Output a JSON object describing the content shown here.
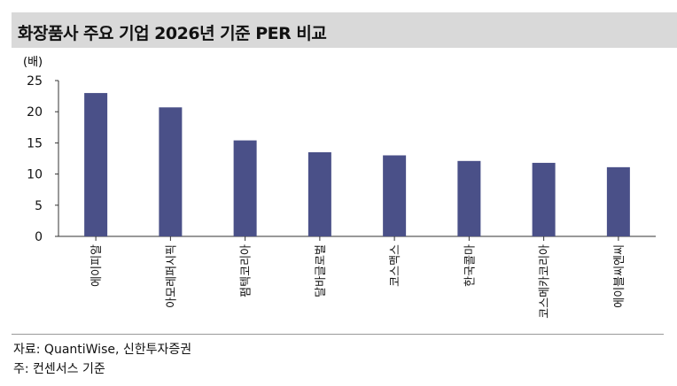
{
  "header": {
    "title": "화장품사 주요 기업 2026년 기준 PER 비교"
  },
  "footer": {
    "source": "자료: QuantiWise, 신한투자증권",
    "note": "주: 컨센서스 기준"
  },
  "chart_data": {
    "type": "bar",
    "title": "화장품사 주요 기업 2026년 기준 PER 비교",
    "ylabel": "(배)",
    "xlabel": "",
    "ylim": [
      0,
      25
    ],
    "yticks": [
      0,
      5,
      10,
      15,
      20,
      25
    ],
    "grid": false,
    "bar_color": "#4a5088",
    "categories": [
      "에이피알",
      "아모레퍼시픽",
      "펌텍코리아",
      "달바글로벌",
      "코스맥스",
      "한국콜마",
      "코스메카코리아",
      "에이블씨엔씨"
    ],
    "values": [
      23.0,
      20.7,
      15.4,
      13.5,
      13.0,
      12.1,
      11.8,
      11.1
    ]
  }
}
